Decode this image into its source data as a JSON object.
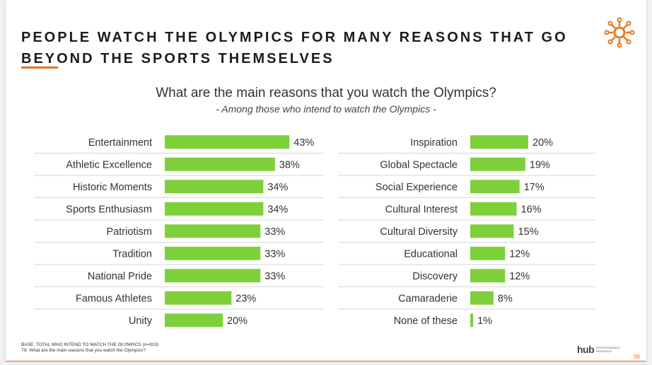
{
  "slide": {
    "title_line1": "PEOPLE WATCH THE OLYMPICS FOR MANY REASONS THAT GO",
    "title_line2": "BEYOND THE SPORTS THEMSELVES",
    "accent_color": "#e87722",
    "logo_icon": "sun-network-icon",
    "page_number": "98"
  },
  "footnote": {
    "line1": "BASE: TOTAL WHO INTEND TO WATCH THE OLYMPICS (n=919)",
    "line2": "T8. What are the main reasons that you watch the Olympics?"
  },
  "brand": {
    "name": "hub",
    "sub": "ENTERTAINMENT RESEARCH"
  },
  "chart_data": {
    "type": "bar",
    "orientation": "horizontal",
    "title": "What are the main reasons that you watch the Olympics?",
    "subtitle": "- Among those who intend to watch the Olympics -",
    "bar_color": "#7ed03b",
    "value_suffix": "%",
    "panels": [
      {
        "categories": [
          "Entertainment",
          "Athletic Excellence",
          "Historic Moments",
          "Sports Enthusiasm",
          "Patriotism",
          "Tradition",
          "National Pride",
          "Famous Athletes",
          "Unity"
        ],
        "values": [
          43,
          38,
          34,
          34,
          33,
          33,
          33,
          23,
          20
        ]
      },
      {
        "categories": [
          "Inspiration",
          "Global Spectacle",
          "Social Experience",
          "Cultural Interest",
          "Cultural Diversity",
          "Educational",
          "Discovery",
          "Camaraderie",
          "None of these"
        ],
        "values": [
          20,
          19,
          17,
          16,
          15,
          12,
          12,
          8,
          1
        ]
      }
    ]
  }
}
